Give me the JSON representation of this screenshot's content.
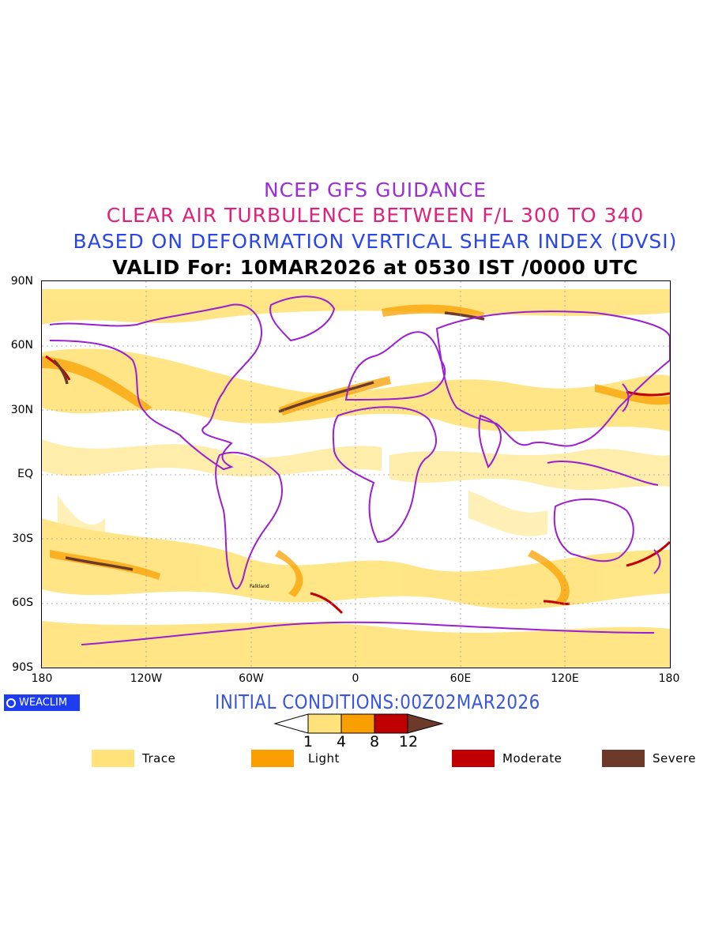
{
  "header": {
    "line1": "NCEP GFS GUIDANCE",
    "line2": "CLEAR AIR TURBULENCE BETWEEN F/L 300 TO 340",
    "line3": "BASED ON DEFORMATION VERTICAL SHEAR INDEX (DVSI)",
    "line4": "VALID For: 10MAR2026 at 0530 IST /0000 UTC",
    "colors": {
      "line1": "#9b2fd6",
      "line2": "#e0207a",
      "line3": "#2a46e6",
      "line4": "#000000"
    }
  },
  "map": {
    "lat_labels": [
      "90N",
      "60N",
      "30N",
      "EQ",
      "30S",
      "60S",
      "90S"
    ],
    "lon_labels": [
      "180",
      "120W",
      "60W",
      "0",
      "60E",
      "120E",
      "180"
    ],
    "coastline_color": "#9b1fd0",
    "place_labels": [
      "Falkland"
    ]
  },
  "brand": {
    "label": "WEACLIM"
  },
  "initial_conditions": "INITIAL CONDITIONS:00Z02MAR2026",
  "scale": {
    "ticks": [
      "1",
      "4",
      "8",
      "12"
    ],
    "colors": [
      "#ffe37a",
      "#f9a000",
      "#c00000",
      "#6b3a2a"
    ]
  },
  "legend": [
    {
      "label": "Trace",
      "color": "#ffe37a"
    },
    {
      "label": "Light",
      "color": "#f9a000"
    },
    {
      "label": "Moderate",
      "color": "#c00000"
    },
    {
      "label": "Severe",
      "color": "#6b3a2a"
    }
  ]
}
